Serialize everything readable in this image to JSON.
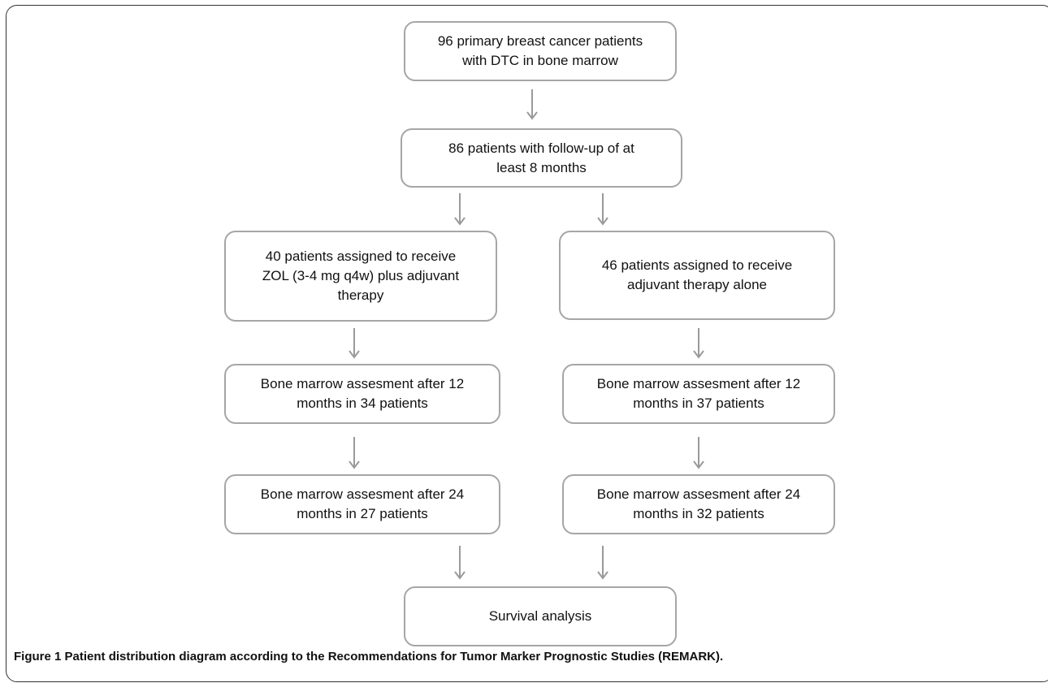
{
  "boxes": {
    "top": "96 primary breast cancer patients\nwith DTC in bone marrow",
    "followup": "86 patients with follow-up of at\nleast 8 months",
    "zol": "40 patients assigned to receive\nZOL (3-4 mg q4w) plus adjuvant\ntherapy",
    "adjuvant": "46 patients assigned to receive\nadjuvant therapy alone",
    "left_12": "Bone marrow assesment after 12\nmonths in 34 patients",
    "right_12": "Bone marrow assesment after 12\nmonths in 37 patients",
    "left_24": "Bone marrow assesment after 24\nmonths in 27 patients",
    "right_24": "Bone marrow assesment after 24\nmonths in 32 patients",
    "survival": "Survival analysis"
  },
  "caption": {
    "label": "Figure 1",
    "text": "Patient distribution diagram according to the Recommendations for Tumor Marker Prognostic Studies (REMARK)."
  },
  "colors": {
    "box_border": "#a6a6a6",
    "arrow": "#9a9a9a"
  }
}
